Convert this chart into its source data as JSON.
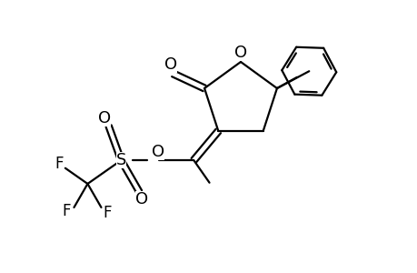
{
  "background_color": "#ffffff",
  "line_color": "#000000",
  "line_width": 1.6,
  "font_size": 12,
  "figsize": [
    4.6,
    3.0
  ],
  "dpi": 100,
  "xlim": [
    0,
    4.6
  ],
  "ylim": [
    0,
    3.0
  ]
}
